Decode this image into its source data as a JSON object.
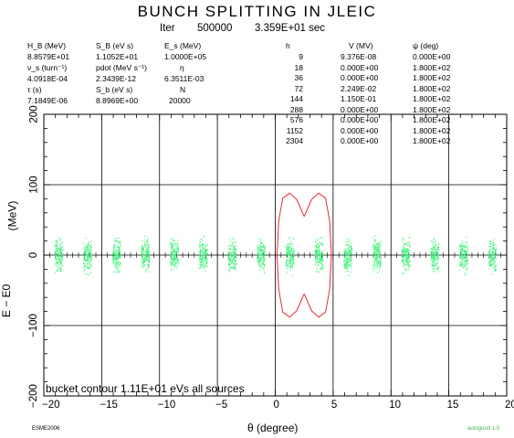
{
  "title": "BUNCH SPLITTING IN JLEIC",
  "iter": {
    "label": "Iter",
    "value": "500000",
    "time": "3.359E+01 sec"
  },
  "params": [
    {
      "name": "H_B (MeV)",
      "value": "8.8579E+01"
    },
    {
      "name": "S_B (eV s)",
      "value": "1.1052E+01"
    },
    {
      "name": "E_s (MeV)",
      "value": "1.0000E+05"
    },
    {
      "name": "ν_s (turn⁻¹)",
      "value": "4.0918E-04"
    },
    {
      "name": "pdot (MeV s⁻¹)",
      "value": "2.3439E-12"
    },
    {
      "name": "η",
      "value": "6.3511E-03"
    },
    {
      "name": "τ (s)",
      "value": "7.1849E-06"
    },
    {
      "name": "S_b (eV s)",
      "value": "8.8969E+00"
    },
    {
      "name": "N",
      "value": "20000"
    }
  ],
  "harmonics": {
    "headers": [
      "h",
      "V (MV)",
      "ψ (deg)"
    ],
    "rows": [
      [
        "9",
        "9.376E-08",
        "0.000E+00"
      ],
      [
        "18",
        "0.000E+00",
        "1.800E+02"
      ],
      [
        "36",
        "0.000E+00",
        "1.800E+02"
      ],
      [
        "72",
        "2.249E-02",
        "1.800E+02"
      ],
      [
        "144",
        "1.150E-01",
        "1.800E+02"
      ],
      [
        "288",
        "0.000E+00",
        "1.800E+02"
      ],
      [
        "576",
        "0.000E+00",
        "1.800E+02"
      ],
      [
        "1152",
        "0.000E+00",
        "1.800E+02"
      ],
      [
        "2304",
        "0.000E+00",
        "1.800E+02"
      ]
    ]
  },
  "bucket_note": "bucket contour 1.11E+01 eVs all sources",
  "footer_left": "ESME2006",
  "footer_right": "autogood 1-5",
  "colors": {
    "particles": "#3ef07a",
    "contour": "#e8283c",
    "axes": "#000000"
  },
  "chart_data": {
    "type": "scatter",
    "xlabel": "θ (degree)",
    "ylabel": "(MeV)",
    "ylabel_sub": "E − E0",
    "xlim": [
      -20,
      20
    ],
    "ylim": [
      -200,
      200
    ],
    "x_ticks": [
      -20,
      -15,
      -10,
      -5,
      0,
      5,
      10,
      15,
      20
    ],
    "x_tick_labels": [
      "−20",
      "−15",
      "−10",
      "−5",
      "0",
      "5",
      "10",
      "15",
      "20"
    ],
    "y_ticks": [
      -200,
      -100,
      0,
      100,
      200
    ],
    "y_tick_labels": [
      "−200",
      "−100",
      "0",
      "100",
      "200"
    ],
    "grid_x": [
      -15,
      -10,
      -5,
      0,
      5,
      10,
      15
    ],
    "grid_y": [
      -100,
      0,
      100
    ],
    "bunch_centers": [
      -18.75,
      -16.25,
      -13.75,
      -11.25,
      -8.75,
      -6.25,
      -3.75,
      -1.25,
      1.25,
      3.75,
      6.25,
      8.75,
      11.25,
      13.75,
      16.25,
      18.75
    ],
    "bunch_half_width_deg": 0.35,
    "bunch_half_height_mev": 32,
    "bucket_contour": {
      "centers": [
        1.25,
        3.75
      ],
      "peak_mev": 88,
      "valley_mev": 55
    }
  }
}
